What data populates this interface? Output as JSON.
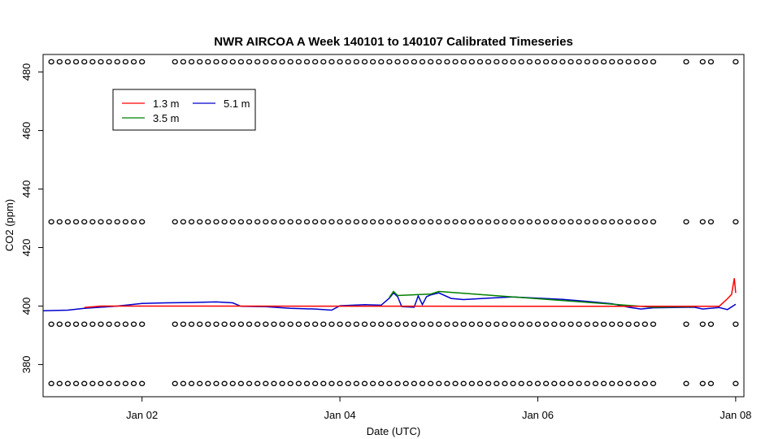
{
  "chart_data": {
    "type": "line",
    "title": "NWR AIRCOA A  Week 140101 to 140107  Calibrated Timeseries",
    "xlabel": "Date (UTC)",
    "ylabel": "CO2 (ppm)",
    "xlim": [
      "2014-01-01T00:00",
      "2014-01-08T02:00"
    ],
    "ylim": [
      369,
      486
    ],
    "x_ticks": [
      {
        "x": "2014-01-02",
        "label": "Jan 02"
      },
      {
        "x": "2014-01-04",
        "label": "Jan 04"
      },
      {
        "x": "2014-01-06",
        "label": "Jan 06"
      },
      {
        "x": "2014-01-08",
        "label": "Jan 08"
      }
    ],
    "y_ticks": [
      380,
      400,
      420,
      440,
      460,
      480
    ],
    "grid": false,
    "legend": {
      "position": "top-left",
      "entries": [
        {
          "name": "1.3 m",
          "color": "#ff0000"
        },
        {
          "name": "3.5 m",
          "color": "#008000"
        },
        {
          "name": "5.1 m",
          "color": "#0000cc"
        }
      ]
    },
    "series": [
      {
        "name": "5.1 m",
        "color": "#0000cc",
        "points": [
          [
            "2014-01-01T00:00",
            398.4
          ],
          [
            "2014-01-01T06:00",
            398.6
          ],
          [
            "2014-01-01T10:00",
            399.2
          ],
          [
            "2014-01-01T14:00",
            399.6
          ],
          [
            "2014-01-01T18:00",
            400.0
          ],
          [
            "2014-01-02T00:00",
            400.9
          ],
          [
            "2014-01-02T06:00",
            401.1
          ],
          [
            "2014-01-02T12:00",
            401.2
          ],
          [
            "2014-01-02T18:00",
            401.4
          ],
          [
            "2014-01-02T22:00",
            401.1
          ],
          [
            "2014-01-03T00:00",
            399.9
          ],
          [
            "2014-01-03T06:00",
            399.8
          ],
          [
            "2014-01-03T12:00",
            399.2
          ],
          [
            "2014-01-03T18:00",
            399.0
          ],
          [
            "2014-01-03T22:00",
            398.6
          ],
          [
            "2014-01-04T00:00",
            400.1
          ],
          [
            "2014-01-04T06:00",
            400.5
          ],
          [
            "2014-01-04T10:00",
            400.3
          ],
          [
            "2014-01-04T12:00",
            402.7
          ],
          [
            "2014-01-04T13:00",
            404.5
          ],
          [
            "2014-01-04T14:00",
            403.2
          ],
          [
            "2014-01-04T15:00",
            399.8
          ],
          [
            "2014-01-04T18:00",
            399.6
          ],
          [
            "2014-01-04T19:00",
            403.5
          ],
          [
            "2014-01-04T20:00",
            400.5
          ],
          [
            "2014-01-04T21:00",
            403.2
          ],
          [
            "2014-01-04T22:00",
            403.8
          ],
          [
            "2014-01-05T00:00",
            404.5
          ],
          [
            "2014-01-05T03:00",
            402.6
          ],
          [
            "2014-01-05T06:00",
            402.2
          ],
          [
            "2014-01-05T12:00",
            402.7
          ],
          [
            "2014-01-05T18:00",
            403.1
          ],
          [
            "2014-01-06T00:00",
            402.7
          ],
          [
            "2014-01-06T06:00",
            402.3
          ],
          [
            "2014-01-06T12:00",
            401.6
          ],
          [
            "2014-01-06T18:00",
            400.8
          ],
          [
            "2014-01-06T22:00",
            399.6
          ],
          [
            "2014-01-07T01:00",
            399.0
          ],
          [
            "2014-01-07T04:00",
            399.4
          ],
          [
            "2014-01-07T14:00",
            399.6
          ],
          [
            "2014-01-07T16:00",
            399.0
          ],
          [
            "2014-01-07T20:00",
            399.5
          ],
          [
            "2014-01-07T22:00",
            398.8
          ],
          [
            "2014-01-08T00:00",
            400.6
          ]
        ]
      },
      {
        "name": "3.5 m",
        "color": "#008000",
        "points": [
          [
            "2014-01-04T12:00",
            403.0
          ],
          [
            "2014-01-04T13:00",
            405.0
          ],
          [
            "2014-01-04T14:00",
            403.6
          ],
          [
            "2014-01-04T22:00",
            404.1
          ],
          [
            "2014-01-05T00:00",
            405.0
          ],
          [
            "2014-01-07T04:00",
            399.6
          ],
          [
            "2014-01-07T14:00",
            399.8
          ]
        ]
      },
      {
        "name": "1.3 m",
        "color": "#ff0000",
        "points": [
          [
            "2014-01-01T10:00",
            399.5
          ],
          [
            "2014-01-01T14:00",
            400.0
          ],
          [
            "2014-01-07T20:00",
            399.9
          ],
          [
            "2014-01-07T22:00",
            402.5
          ],
          [
            "2014-01-07T23:00",
            404.0
          ],
          [
            "2014-01-07T23:40",
            409.5
          ],
          [
            "2014-01-08T00:00",
            404.5
          ]
        ]
      }
    ],
    "markers": {
      "symbol": "o",
      "levels": [
        483.5,
        428.8,
        393.8,
        373.5
      ],
      "x": [
        "2014-01-01T02:00",
        "2014-01-01T04:00",
        "2014-01-01T06:00",
        "2014-01-01T08:00",
        "2014-01-01T10:00",
        "2014-01-01T12:00",
        "2014-01-01T14:00",
        "2014-01-01T16:00",
        "2014-01-01T18:00",
        "2014-01-01T20:00",
        "2014-01-01T22:00",
        "2014-01-02T00:00",
        "2014-01-02T08:00",
        "2014-01-02T10:00",
        "2014-01-02T12:00",
        "2014-01-02T14:00",
        "2014-01-02T16:00",
        "2014-01-02T18:00",
        "2014-01-02T20:00",
        "2014-01-02T22:00",
        "2014-01-03T00:00",
        "2014-01-03T02:00",
        "2014-01-03T04:00",
        "2014-01-03T06:00",
        "2014-01-03T08:00",
        "2014-01-03T10:00",
        "2014-01-03T12:00",
        "2014-01-03T14:00",
        "2014-01-03T16:00",
        "2014-01-03T18:00",
        "2014-01-03T20:00",
        "2014-01-03T22:00",
        "2014-01-04T00:00",
        "2014-01-04T02:00",
        "2014-01-04T04:00",
        "2014-01-04T06:00",
        "2014-01-04T08:00",
        "2014-01-04T10:00",
        "2014-01-04T12:00",
        "2014-01-04T14:00",
        "2014-01-04T16:00",
        "2014-01-04T18:00",
        "2014-01-04T20:00",
        "2014-01-04T22:00",
        "2014-01-05T00:00",
        "2014-01-05T02:00",
        "2014-01-05T04:00",
        "2014-01-05T06:00",
        "2014-01-05T08:00",
        "2014-01-05T10:00",
        "2014-01-05T12:00",
        "2014-01-05T14:00",
        "2014-01-05T16:00",
        "2014-01-05T18:00",
        "2014-01-05T20:00",
        "2014-01-05T22:00",
        "2014-01-06T00:00",
        "2014-01-06T02:00",
        "2014-01-06T04:00",
        "2014-01-06T06:00",
        "2014-01-06T08:00",
        "2014-01-06T10:00",
        "2014-01-06T12:00",
        "2014-01-06T14:00",
        "2014-01-06T16:00",
        "2014-01-06T18:00",
        "2014-01-06T20:00",
        "2014-01-06T22:00",
        "2014-01-07T00:00",
        "2014-01-07T02:00",
        "2014-01-07T04:00",
        "2014-01-07T12:00",
        "2014-01-07T16:00",
        "2014-01-07T18:00",
        "2014-01-08T00:00"
      ]
    }
  }
}
